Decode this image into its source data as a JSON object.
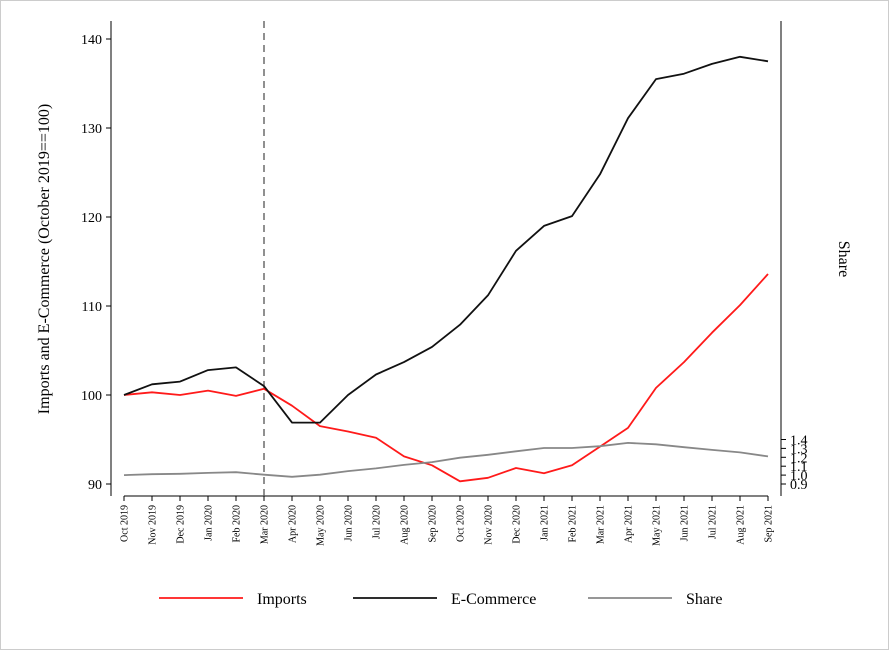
{
  "chart_data": {
    "type": "line",
    "title": "",
    "xlabel": "",
    "ylabel": "Imports and E-Commerce (October 2019==100)",
    "y2label": "Share",
    "ylim": [
      88,
      142
    ],
    "y2lim": [
      0.88,
      1.42
    ],
    "yticks": [
      "90",
      "100",
      "110",
      "120",
      "130",
      "140"
    ],
    "y2ticks": [
      "0.9",
      "1.0",
      "1.1",
      "1.2",
      "1.3",
      "1.4"
    ],
    "ytick_values": [
      90,
      100,
      110,
      120,
      130,
      140
    ],
    "y2tick_values": [
      0.9,
      1.0,
      1.1,
      1.2,
      1.3,
      1.4
    ],
    "categories": [
      "Oct 2019",
      "Nov 2019",
      "Dec 2019",
      "Jan 2020",
      "Feb 2020",
      "Mar 2020",
      "Apr 2020",
      "May 2020",
      "Jun 2020",
      "Jul 2020",
      "Aug 2020",
      "Sep 2020",
      "Oct 2020",
      "Nov 2020",
      "Dec 2020",
      "Jan 2021",
      "Feb 2021",
      "Mar 2021",
      "Apr 2021",
      "May 2021",
      "Jun 2021",
      "Jul 2021",
      "Aug 2021",
      "Sep 2021"
    ],
    "vline": {
      "category": "Mar 2020",
      "style": "dashed"
    },
    "grid": false,
    "legend_position": "bottom",
    "series": [
      {
        "name": "Imports",
        "axis": "left",
        "color": "#ff1a1a",
        "values": [
          100,
          100.3,
          100,
          100.5,
          99.9,
          100.7,
          98.8,
          96.5,
          95.9,
          95.2,
          93.1,
          92.1,
          90.3,
          90.7,
          91.8,
          91.2,
          92.1,
          94.2,
          96.3,
          100.8,
          103.7,
          107.0,
          110.1,
          113.6
        ]
      },
      {
        "name": "E-Commerce",
        "axis": "left",
        "color": "#111111",
        "values": [
          100,
          101.2,
          101.5,
          102.8,
          103.1,
          101.0,
          96.9,
          96.9,
          100.0,
          102.3,
          103.7,
          105.4,
          107.9,
          111.2,
          116.2,
          119.0,
          120.1,
          124.8,
          131.1,
          135.5,
          136.1,
          137.2,
          138.0,
          137.5
        ]
      },
      {
        "name": "Share",
        "axis": "right",
        "color": "#888888",
        "values": [
          1.0,
          1.01,
          1.015,
          1.025,
          1.033,
          1.005,
          0.981,
          1.004,
          1.045,
          1.075,
          1.115,
          1.146,
          1.196,
          1.228,
          1.267,
          1.305,
          1.304,
          1.325,
          1.362,
          1.346,
          1.313,
          1.283,
          1.255,
          1.21
        ]
      }
    ]
  }
}
